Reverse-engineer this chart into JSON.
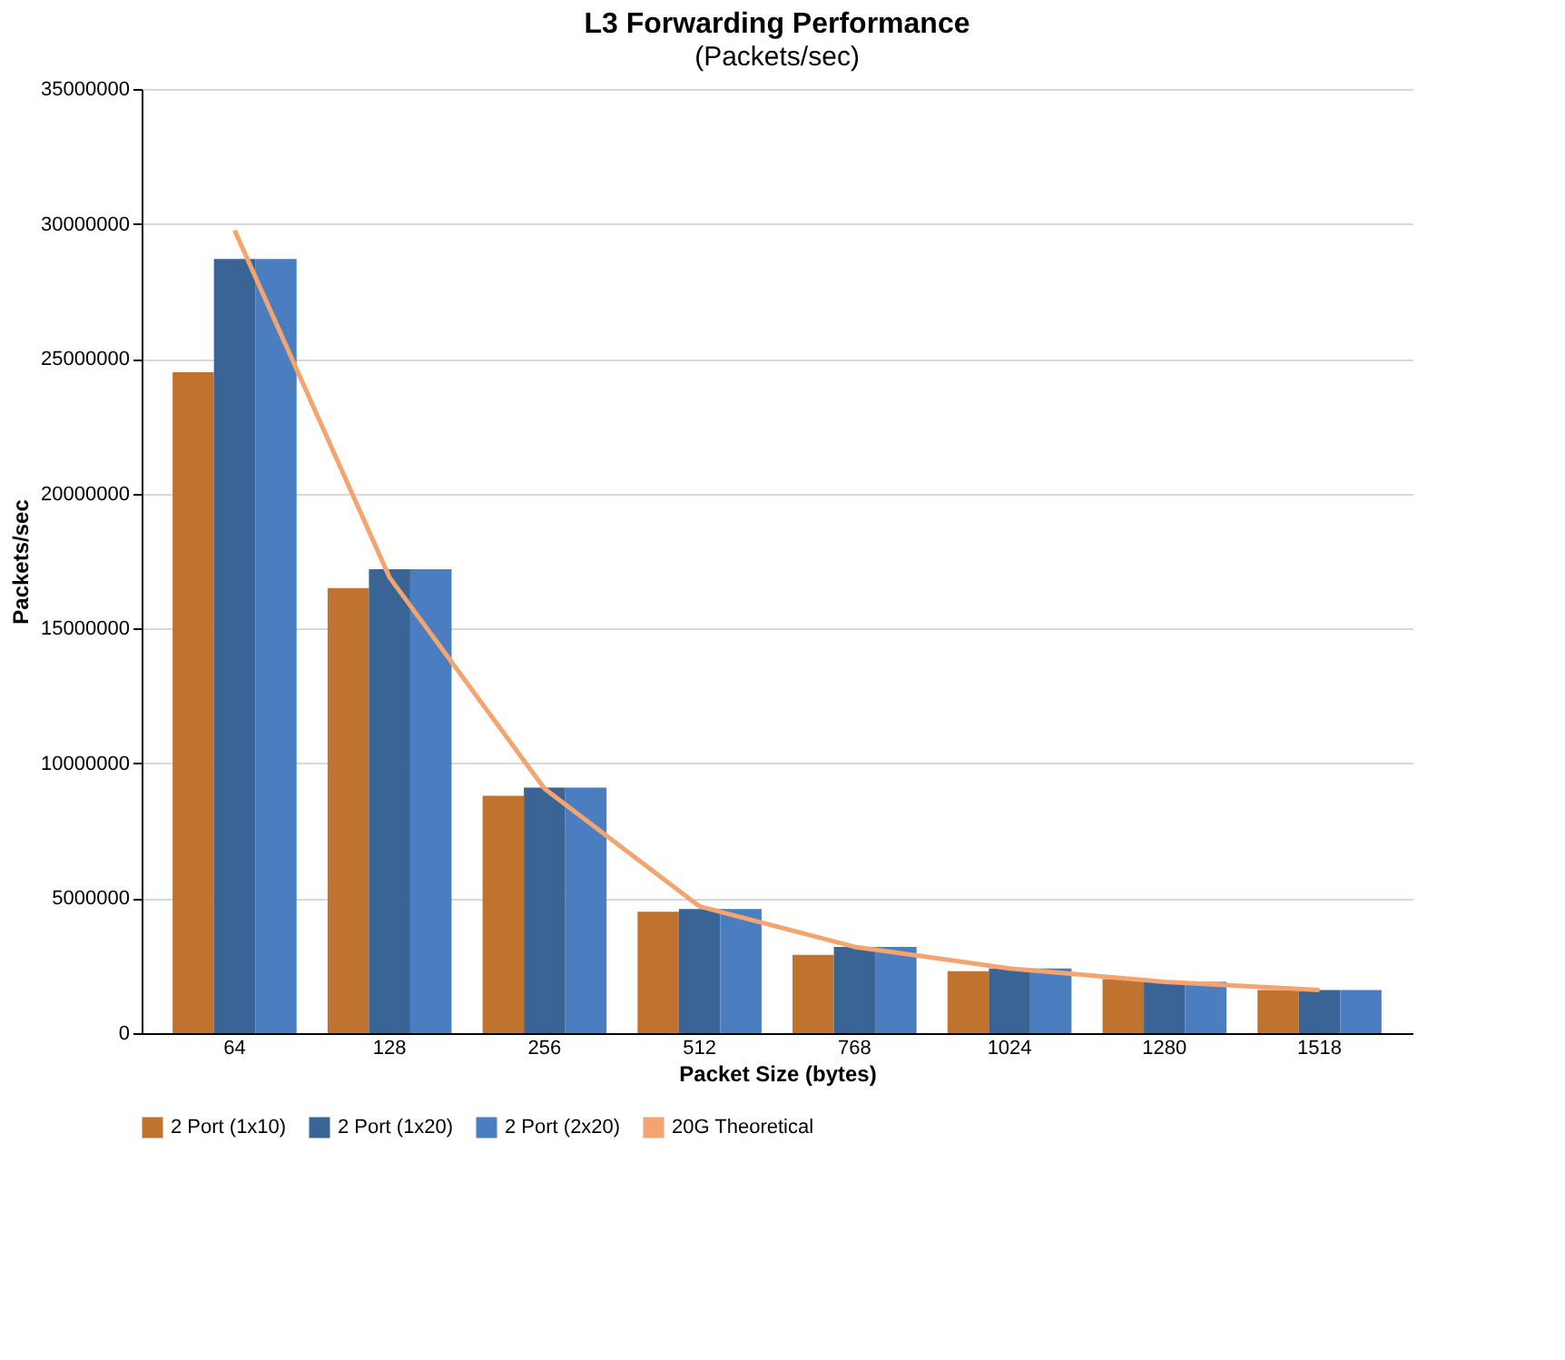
{
  "chart_data": {
    "type": "bar",
    "title": "L3 Forwarding Performance",
    "subtitle": "(Packets/sec)",
    "xlabel": "Packet Size (bytes)",
    "ylabel": "Packets/sec",
    "categories": [
      "64",
      "128",
      "256",
      "512",
      "768",
      "1024",
      "1280",
      "1518"
    ],
    "series": [
      {
        "name": "2 Port (1x10)",
        "color": "#c0722f",
        "values": [
          24500000,
          16500000,
          8800000,
          4500000,
          2900000,
          2300000,
          2000000,
          1600000
        ]
      },
      {
        "name": "2 Port (1x20)",
        "color": "#3a6496",
        "values": [
          28700000,
          17200000,
          9100000,
          4600000,
          3200000,
          2400000,
          1900000,
          1600000
        ]
      },
      {
        "name": "2 Port (2x20)",
        "color": "#4a7ec0",
        "values": [
          28700000,
          17200000,
          9100000,
          4600000,
          3200000,
          2400000,
          1900000,
          1600000
        ]
      },
      {
        "name": "20G Theoretical",
        "type": "line",
        "color": "#f4a46e",
        "values": [
          29760000,
          16890000,
          9060000,
          4700000,
          3200000,
          2400000,
          1900000,
          1600000
        ]
      }
    ],
    "ylim": [
      0,
      35000000
    ],
    "yticks": [
      0,
      5000000,
      10000000,
      15000000,
      20000000,
      25000000,
      30000000,
      35000000
    ],
    "grid": "y",
    "legend": "bottom"
  }
}
